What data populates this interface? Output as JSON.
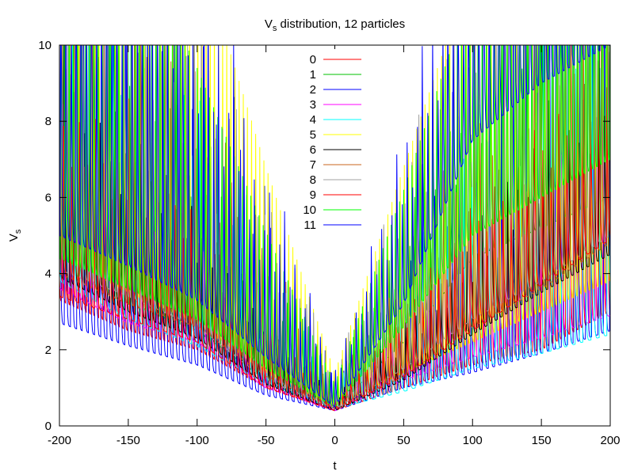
{
  "chart_data": {
    "type": "line",
    "title": {
      "main": "V",
      "sub": "s",
      "rest": " distribution, 12 particles"
    },
    "xlabel": "t",
    "ylabel": {
      "main": "V",
      "sub": "s"
    },
    "xlim": [
      -200,
      200
    ],
    "ylim": [
      0,
      10
    ],
    "xticks": [
      -200,
      -150,
      -100,
      -50,
      0,
      50,
      100,
      150,
      200
    ],
    "yticks": [
      0,
      2,
      4,
      6,
      8,
      10
    ],
    "grid": false,
    "legend_position": "top-center",
    "series": [
      {
        "name": "0",
        "color": "#ff0000",
        "baseline": [
          [
            -200,
            3.3
          ],
          [
            -150,
            2.5
          ],
          [
            -100,
            2.0
          ],
          [
            -50,
            1.0
          ],
          [
            0,
            0.4
          ],
          [
            50,
            1.0
          ],
          [
            100,
            1.6
          ],
          [
            150,
            2.0
          ],
          [
            200,
            3.0
          ]
        ]
      },
      {
        "name": "1",
        "color": "#00c000",
        "baseline": [
          [
            -200,
            4.2
          ],
          [
            -150,
            3.2
          ],
          [
            -100,
            2.5
          ],
          [
            -50,
            1.2
          ],
          [
            0,
            0.45
          ],
          [
            50,
            2.2
          ],
          [
            100,
            4.4
          ],
          [
            150,
            5.2
          ],
          [
            200,
            6.0
          ]
        ]
      },
      {
        "name": "2",
        "color": "#0000ff",
        "baseline": [
          [
            -200,
            2.7
          ],
          [
            -150,
            2.1
          ],
          [
            -100,
            1.6
          ],
          [
            -50,
            0.8
          ],
          [
            0,
            0.4
          ],
          [
            50,
            1.0
          ],
          [
            100,
            1.4
          ],
          [
            150,
            1.9
          ],
          [
            200,
            2.5
          ]
        ]
      },
      {
        "name": "3",
        "color": "#ff00ff",
        "baseline": [
          [
            -200,
            3.6
          ],
          [
            -150,
            2.7
          ],
          [
            -100,
            2.2
          ],
          [
            -50,
            1.0
          ],
          [
            0,
            0.4
          ],
          [
            50,
            1.2
          ],
          [
            100,
            1.8
          ],
          [
            150,
            2.3
          ],
          [
            200,
            2.9
          ]
        ]
      },
      {
        "name": "4",
        "color": "#00ffff",
        "baseline": [
          [
            -200,
            3.8
          ],
          [
            -150,
            2.8
          ],
          [
            -100,
            2.1
          ],
          [
            -50,
            1.1
          ],
          [
            0,
            0.45
          ],
          [
            50,
            0.9
          ],
          [
            100,
            1.5
          ],
          [
            150,
            1.9
          ],
          [
            200,
            2.4
          ]
        ]
      },
      {
        "name": "5",
        "color": "#ffff00",
        "baseline": [
          [
            -200,
            4.5
          ],
          [
            -150,
            3.5
          ],
          [
            -100,
            2.7
          ],
          [
            -50,
            1.4
          ],
          [
            0,
            0.5
          ],
          [
            50,
            1.4
          ],
          [
            100,
            2.2
          ],
          [
            150,
            3.0
          ],
          [
            200,
            3.8
          ]
        ]
      },
      {
        "name": "6",
        "color": "#000000",
        "baseline": [
          [
            -200,
            3.9
          ],
          [
            -150,
            3.0
          ],
          [
            -100,
            2.3
          ],
          [
            -50,
            1.1
          ],
          [
            0,
            0.4
          ],
          [
            50,
            1.2
          ],
          [
            100,
            2.4
          ],
          [
            150,
            3.5
          ],
          [
            200,
            4.5
          ]
        ]
      },
      {
        "name": "7",
        "color": "#c8641e",
        "baseline": [
          [
            -200,
            4.0
          ],
          [
            -150,
            3.2
          ],
          [
            -100,
            2.6
          ],
          [
            -50,
            1.3
          ],
          [
            0,
            0.45
          ],
          [
            50,
            1.3
          ],
          [
            100,
            2.6
          ],
          [
            150,
            3.6
          ],
          [
            200,
            4.8
          ]
        ]
      },
      {
        "name": "8",
        "color": "#a0a0a0",
        "baseline": [
          [
            -200,
            4.1
          ],
          [
            -150,
            3.4
          ],
          [
            -100,
            2.6
          ],
          [
            -50,
            1.2
          ],
          [
            0,
            0.45
          ],
          [
            50,
            1.5
          ],
          [
            100,
            2.8
          ],
          [
            150,
            3.8
          ],
          [
            200,
            5.0
          ]
        ]
      },
      {
        "name": "9",
        "color": "#ff0000",
        "baseline": [
          [
            -200,
            3.4
          ],
          [
            -150,
            2.8
          ],
          [
            -100,
            2.2
          ],
          [
            -50,
            1.0
          ],
          [
            0,
            0.4
          ],
          [
            50,
            1.3
          ],
          [
            100,
            2.5
          ],
          [
            150,
            3.7
          ],
          [
            200,
            4.9
          ]
        ]
      },
      {
        "name": "10",
        "color": "#00ff00",
        "baseline": [
          [
            -200,
            4.4
          ],
          [
            -150,
            3.6
          ],
          [
            -100,
            2.8
          ],
          [
            -50,
            1.5
          ],
          [
            0,
            0.5
          ],
          [
            50,
            2.6
          ],
          [
            100,
            5.0
          ],
          [
            150,
            6.0
          ],
          [
            200,
            7.0
          ]
        ]
      },
      {
        "name": "11",
        "color": "#0000ff",
        "baseline": [
          [
            -200,
            5.0
          ],
          [
            -150,
            4.2
          ],
          [
            -100,
            3.3
          ],
          [
            -50,
            1.8
          ],
          [
            0,
            0.5
          ],
          [
            50,
            3.2
          ],
          [
            100,
            7.5
          ],
          [
            150,
            9.0
          ],
          [
            200,
            10.0
          ]
        ]
      }
    ]
  }
}
